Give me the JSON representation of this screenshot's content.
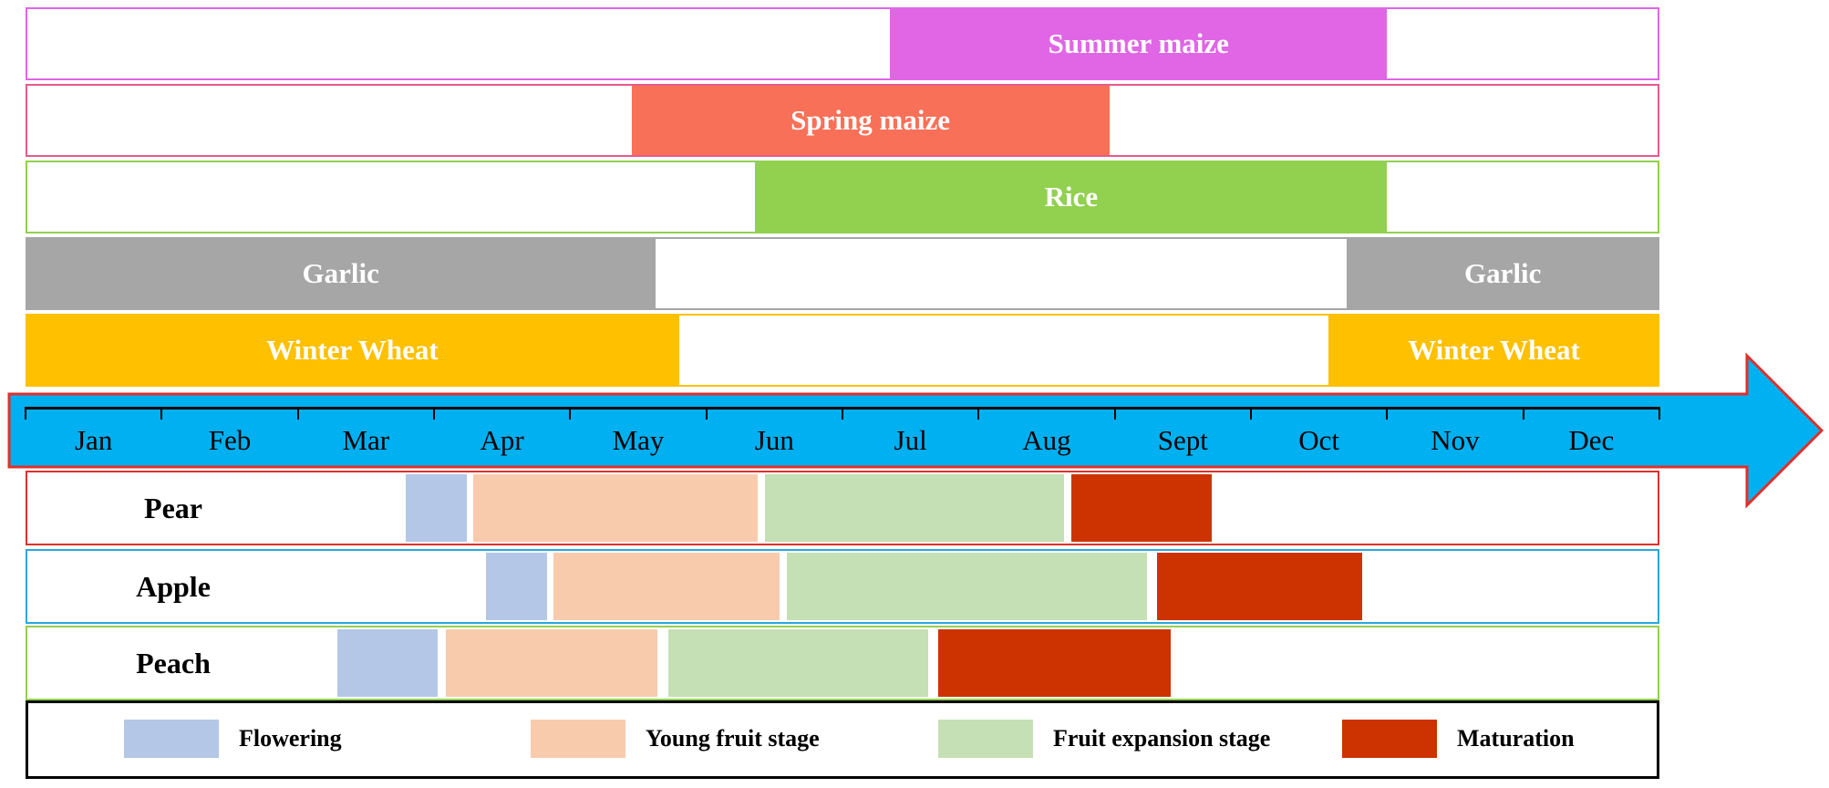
{
  "crops": [
    {
      "id": "summer-maize",
      "label": "Summer maize",
      "color": "#e066e6",
      "border": "#e066e6",
      "start_month": 6.35,
      "end_month": 10.0
    },
    {
      "id": "spring-maize",
      "label": "Spring maize",
      "color": "#f87058",
      "border": "#e85a8a",
      "start_month": 4.45,
      "end_month": 7.96
    },
    {
      "id": "rice",
      "label": "Rice",
      "color": "#92d050",
      "border": "#92d050",
      "start_month": 5.36,
      "end_month": 10.0
    },
    {
      "id": "garlic",
      "label": "Garlic",
      "color": "#a6a6a6",
      "border": "#a6a6a6",
      "segments": [
        {
          "label": "Garlic",
          "start_month": 0.0,
          "end_month": 4.63
        },
        {
          "label": "Garlic",
          "start_month": 9.7,
          "end_month": 12.0
        }
      ]
    },
    {
      "id": "winter-wheat",
      "label": "Winter Wheat",
      "color": "#ffc000",
      "border": "#ffc000",
      "segments": [
        {
          "label": "Winter Wheat",
          "start_month": 0.0,
          "end_month": 4.8
        },
        {
          "label": "Winter Wheat",
          "start_month": 9.57,
          "end_month": 12.0
        }
      ]
    }
  ],
  "timeline": {
    "color": "#00b0f0",
    "outline": "#e0302a",
    "months": [
      "Jan",
      "Feb",
      "Mar",
      "Apr",
      "May",
      "Jun",
      "Jul",
      "Aug",
      "Sept",
      "Oct",
      "Nov",
      "Dec"
    ]
  },
  "fruits": [
    {
      "id": "pear",
      "label": "Pear",
      "border": "#e0302a",
      "stages": [
        {
          "stage": "flowering",
          "start_month": 2.79,
          "end_month": 3.24
        },
        {
          "stage": "young",
          "start_month": 3.29,
          "end_month": 5.38
        },
        {
          "stage": "expansion",
          "start_month": 5.43,
          "end_month": 7.63
        },
        {
          "stage": "maturation",
          "start_month": 7.68,
          "end_month": 8.71
        }
      ]
    },
    {
      "id": "apple",
      "label": "Apple",
      "border": "#2aa6e0",
      "stages": [
        {
          "stage": "flowering",
          "start_month": 3.38,
          "end_month": 3.83
        },
        {
          "stage": "young",
          "start_month": 3.88,
          "end_month": 5.54
        },
        {
          "stage": "expansion",
          "start_month": 5.59,
          "end_month": 8.24
        },
        {
          "stage": "maturation",
          "start_month": 8.31,
          "end_month": 9.82
        }
      ]
    },
    {
      "id": "peach",
      "label": "Peach",
      "border": "#92d050",
      "stages": [
        {
          "stage": "flowering",
          "start_month": 2.29,
          "end_month": 3.03
        },
        {
          "stage": "young",
          "start_month": 3.09,
          "end_month": 4.64
        },
        {
          "stage": "expansion",
          "start_month": 4.72,
          "end_month": 6.63
        },
        {
          "stage": "maturation",
          "start_month": 6.7,
          "end_month": 8.41
        }
      ]
    }
  ],
  "stage_colors": {
    "flowering": "#b4c7e7",
    "young": "#f8cbad",
    "expansion": "#c5e0b4",
    "maturation": "#cc3300"
  },
  "legend": [
    {
      "stage": "flowering",
      "label": "Flowering"
    },
    {
      "stage": "young",
      "label": "Young fruit stage"
    },
    {
      "stage": "expansion",
      "label": "Fruit expansion stage"
    },
    {
      "stage": "maturation",
      "label": "Maturation"
    }
  ]
}
